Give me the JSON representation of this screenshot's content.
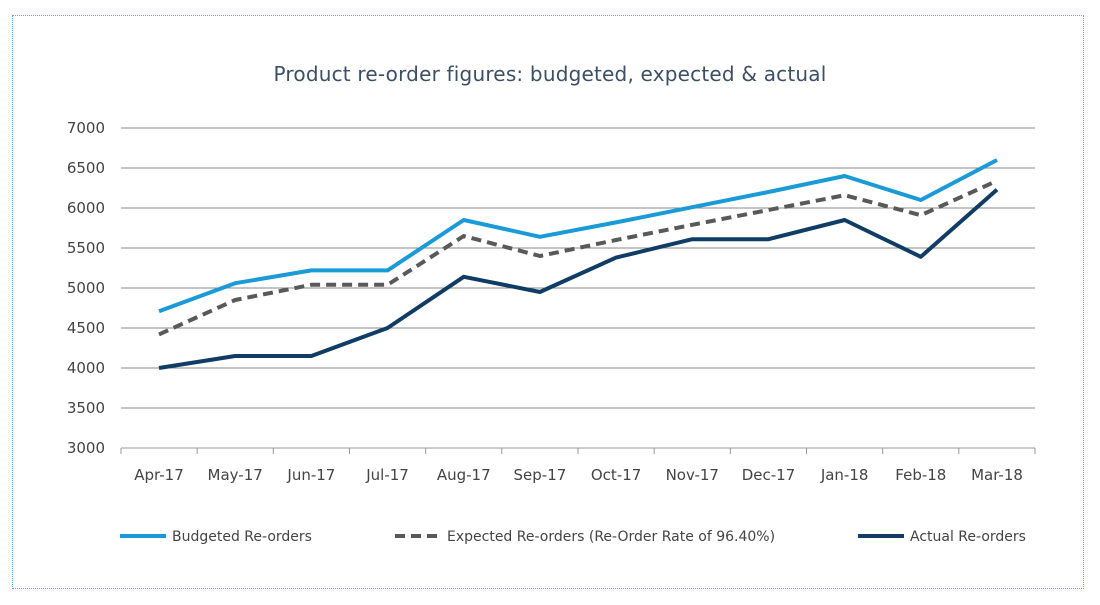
{
  "chart_data": {
    "type": "line",
    "title": "Product re-order figures: budgeted, expected & actual",
    "xlabel": "",
    "ylabel": "",
    "categories": [
      "Apr-17",
      "May-17",
      "Jun-17",
      "Jul-17",
      "Aug-17",
      "Sep-17",
      "Oct-17",
      "Nov-17",
      "Dec-17",
      "Jan-18",
      "Feb-18",
      "Mar-18"
    ],
    "ylim": [
      3000,
      7000
    ],
    "yticks": [
      3000,
      3500,
      4000,
      4500,
      5000,
      5500,
      6000,
      6500,
      7000
    ],
    "grid": true,
    "legend_position": "bottom",
    "series": [
      {
        "name": "Budgeted Re-orders",
        "color": "#1a9ad6",
        "style": "solid",
        "values": [
          4710,
          5060,
          5220,
          5220,
          5850,
          5640,
          5820,
          6010,
          6200,
          6400,
          6100,
          6600
        ]
      },
      {
        "name": "Expected Re-orders (Re-Order Rate of 96.40%)",
        "color": "#595959",
        "style": "dashed",
        "values": [
          4420,
          4850,
          5040,
          5040,
          5650,
          5400,
          5600,
          5790,
          5975,
          6160,
          5910,
          6340
        ]
      },
      {
        "name": "Actual Re-orders",
        "color": "#0f3d66",
        "style": "solid",
        "values": [
          4000,
          4150,
          4150,
          4500,
          5140,
          4950,
          5380,
          5610,
          5610,
          5850,
          5390,
          6230
        ]
      }
    ]
  }
}
